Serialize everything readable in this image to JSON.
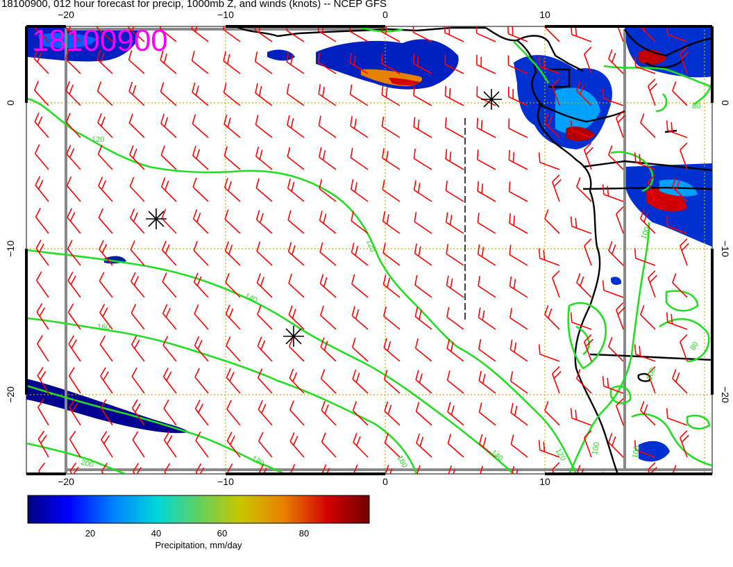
{
  "title": "18100900, 012 hour forecast for precip, 1000mb Z, and winds (knots) -- NCEP GFS",
  "stamp": "18100900",
  "axes": {
    "top_ticks": [
      "−20",
      "−10",
      "0",
      "10"
    ],
    "bottom_ticks": [
      "−20",
      "−10",
      "0",
      "10"
    ],
    "left_ticks": [
      "0",
      "−10",
      "−20"
    ],
    "right_ticks": [
      "0",
      "−10",
      "−20"
    ]
  },
  "contour_labels": [
    "120",
    "120",
    "140",
    "160",
    "200",
    "180",
    "160",
    "140",
    "120",
    "100",
    "100",
    "100",
    "80",
    "80",
    "100"
  ],
  "colorbar": {
    "ticks": [
      "20",
      "40",
      "60",
      "80"
    ],
    "label": "Precipitation, mm/day",
    "colors": [
      "#000080",
      "#0000ff",
      "#0080ff",
      "#00d8d8",
      "#60d060",
      "#c8c800",
      "#e88000",
      "#d00000",
      "#700000"
    ]
  },
  "colors": {
    "contour": "#22dd22",
    "wind_barb": "#ff0000",
    "grid": "#ccaa00",
    "coast": "#000000",
    "stamp": "#ff00ff"
  }
}
